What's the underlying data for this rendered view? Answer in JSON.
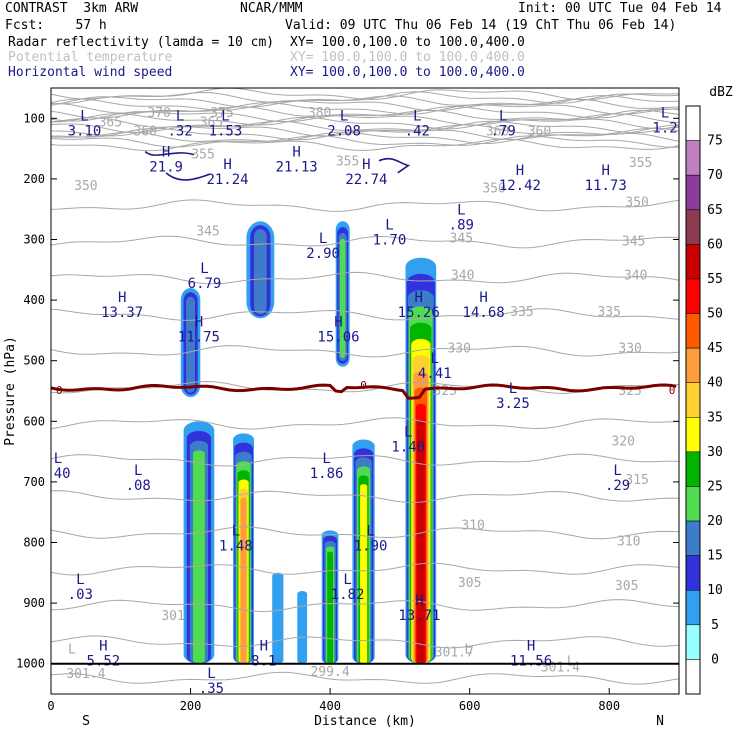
{
  "header": {
    "model": "CONTRAST  3km ARW",
    "center": "NCAR/MMM",
    "init": "Init: 00 UTC Tue 04 Feb 14",
    "fcst": "Fcst:    57 h",
    "valid": "Valid: 09 UTC Thu 06 Feb 14 (19 ChT Thu 06 Feb 14)",
    "fields": [
      {
        "name": "Radar reflectivity (lamda = 10 cm)",
        "xy": "XY= 100.0,100.0 to 100.0,400.0",
        "style": "black"
      },
      {
        "name": "Potential temperature",
        "xy": "XY= 100.0,100.0 to 100.0,400.0",
        "style": "gray"
      },
      {
        "name": "Horizontal wind speed",
        "xy": "XY= 100.0,100.0 to 100.0,400.0",
        "style": "blue"
      }
    ]
  },
  "colors": {
    "wind": "#1a1a8c",
    "theta": "#a8a8a8",
    "freezing": "#7a0000"
  },
  "chart_data": {
    "type": "heatmap",
    "xlabel": "Distance (km)",
    "ylabel": "Pressure (hPa)",
    "xlim": [
      0,
      900
    ],
    "ylim": [
      1050,
      50
    ],
    "x_ticks": [
      0,
      200,
      400,
      600,
      800
    ],
    "y_ticks": [
      100,
      200,
      300,
      400,
      500,
      600,
      700,
      800,
      900,
      1000
    ],
    "x_end_labels": {
      "left": "S",
      "right": "N"
    },
    "colorbar": {
      "unit": "dBZ",
      "levels": [
        75,
        70,
        65,
        60,
        55,
        50,
        45,
        40,
        35,
        30,
        25,
        20,
        15,
        10,
        5,
        0
      ],
      "colors": [
        "#ffffff",
        "#c080c0",
        "#8c3c9c",
        "#8c3c50",
        "#c80000",
        "#ff0000",
        "#ff5a00",
        "#ff9c3c",
        "#ffd232",
        "#ffff00",
        "#00b400",
        "#50dc50",
        "#3c7cc8",
        "#3232dc",
        "#32a0f0",
        "#96ffff",
        "#ffffff"
      ]
    },
    "reflectivity_cells": [
      {
        "x": 212,
        "p_top": 600,
        "p_bottom": 1000,
        "half_width_km": 22,
        "peak_dbz": 20
      },
      {
        "x": 200,
        "p_top": 380,
        "p_bottom": 560,
        "half_width_km": 14,
        "peak_dbz": 15
      },
      {
        "x": 300,
        "p_top": 270,
        "p_bottom": 430,
        "half_width_km": 20,
        "peak_dbz": 15
      },
      {
        "x": 276,
        "p_top": 620,
        "p_bottom": 1000,
        "half_width_km": 15,
        "peak_dbz": 40
      },
      {
        "x": 400,
        "p_top": 780,
        "p_bottom": 1000,
        "half_width_km": 12,
        "peak_dbz": 25
      },
      {
        "x": 418,
        "p_top": 270,
        "p_bottom": 510,
        "half_width_km": 10,
        "peak_dbz": 20
      },
      {
        "x": 448,
        "p_top": 630,
        "p_bottom": 1000,
        "half_width_km": 16,
        "peak_dbz": 30
      },
      {
        "x": 530,
        "p_top": 330,
        "p_bottom": 1000,
        "half_width_km": 22,
        "peak_dbz": 55
      },
      {
        "x": 325,
        "p_top": 850,
        "p_bottom": 1000,
        "half_width_km": 8,
        "peak_dbz": 5
      },
      {
        "x": 360,
        "p_top": 880,
        "p_bottom": 1000,
        "half_width_km": 7,
        "peak_dbz": 5
      }
    ],
    "theta_contour_labels": [
      {
        "text": "365",
        "x": 85,
        "p": 105
      },
      {
        "text": "365",
        "x": 230,
        "p": 105
      },
      {
        "text": "370",
        "x": 155,
        "p": 90
      },
      {
        "text": "375",
        "x": 245,
        "p": 90
      },
      {
        "text": "380",
        "x": 385,
        "p": 90
      },
      {
        "text": "360",
        "x": 135,
        "p": 120
      },
      {
        "text": "360",
        "x": 640,
        "p": 120
      },
      {
        "text": "360",
        "x": 700,
        "p": 120
      },
      {
        "text": "355",
        "x": 218,
        "p": 158
      },
      {
        "text": "355",
        "x": 425,
        "p": 170
      },
      {
        "text": "355",
        "x": 845,
        "p": 172
      },
      {
        "text": "350",
        "x": 50,
        "p": 210
      },
      {
        "text": "350",
        "x": 635,
        "p": 214
      },
      {
        "text": "350",
        "x": 840,
        "p": 237
      },
      {
        "text": "345",
        "x": 225,
        "p": 285
      },
      {
        "text": "345",
        "x": 588,
        "p": 297
      },
      {
        "text": "345",
        "x": 835,
        "p": 302
      },
      {
        "text": "340",
        "x": 590,
        "p": 358
      },
      {
        "text": "340",
        "x": 838,
        "p": 358
      },
      {
        "text": "335",
        "x": 675,
        "p": 418
      },
      {
        "text": "335",
        "x": 800,
        "p": 418
      },
      {
        "text": "330",
        "x": 585,
        "p": 478
      },
      {
        "text": "330",
        "x": 830,
        "p": 478
      },
      {
        "text": "325",
        "x": 565,
        "p": 548
      },
      {
        "text": "325",
        "x": 830,
        "p": 548
      },
      {
        "text": "320",
        "x": 820,
        "p": 632
      },
      {
        "text": "315",
        "x": 840,
        "p": 695
      },
      {
        "text": "310",
        "x": 605,
        "p": 770
      },
      {
        "text": "310",
        "x": 828,
        "p": 797
      },
      {
        "text": "305",
        "x": 600,
        "p": 865
      },
      {
        "text": "305",
        "x": 825,
        "p": 870
      },
      {
        "text": "301",
        "x": 175,
        "p": 920
      },
      {
        "text": "301.7",
        "x": 578,
        "p": 980
      },
      {
        "text": "301.4",
        "x": 50,
        "p": 1015
      },
      {
        "text": "301.4",
        "x": 730,
        "p": 1005
      },
      {
        "text": "299.4",
        "x": 400,
        "p": 1012
      }
    ],
    "theta_markers": [
      {
        "text": "L",
        "x": 598,
        "p": 975
      },
      {
        "text": "L",
        "x": 745,
        "p": 995
      },
      {
        "text": "L",
        "x": 30,
        "p": 975
      }
    ],
    "freezing_level_labels": [
      {
        "text": "0",
        "x": 12,
        "p": 548
      },
      {
        "text": "0",
        "x": 448,
        "p": 540
      },
      {
        "text": "0",
        "x": 890,
        "p": 548
      }
    ],
    "wind_labels": [
      {
        "type": "L",
        "value": "3.10",
        "x": 48,
        "p": 110
      },
      {
        "type": "L",
        "value": ".32",
        "x": 185,
        "p": 110
      },
      {
        "type": "L",
        "value": "1.53",
        "x": 250,
        "p": 110
      },
      {
        "type": "L",
        "value": "2.08",
        "x": 420,
        "p": 110
      },
      {
        "type": "L",
        "value": ".42",
        "x": 525,
        "p": 110
      },
      {
        "type": "L",
        "value": ".79",
        "x": 648,
        "p": 110
      },
      {
        "type": "L",
        "value": "1.2",
        "x": 880,
        "p": 105
      },
      {
        "type": "H",
        "value": "21.9",
        "x": 165,
        "p": 170
      },
      {
        "type": "H",
        "value": "21.24",
        "x": 253,
        "p": 190
      },
      {
        "type": "H",
        "value": "21.13",
        "x": 352,
        "p": 170
      },
      {
        "type": "H",
        "value": "22.74",
        "x": 452,
        "p": 190
      },
      {
        "type": "H",
        "value": "12.42",
        "x": 672,
        "p": 200
      },
      {
        "type": "H",
        "value": "11.73",
        "x": 795,
        "p": 200
      },
      {
        "type": "L",
        "value": ".89",
        "x": 588,
        "p": 265
      },
      {
        "type": "L",
        "value": "1.70",
        "x": 485,
        "p": 290
      },
      {
        "type": "L",
        "value": "2.90",
        "x": 390,
        "p": 312
      },
      {
        "type": "L",
        "value": "6.79",
        "x": 220,
        "p": 362
      },
      {
        "type": "H",
        "value": "13.37",
        "x": 102,
        "p": 410
      },
      {
        "type": "H",
        "value": "15.26",
        "x": 527,
        "p": 410
      },
      {
        "type": "H",
        "value": "14.68",
        "x": 620,
        "p": 410
      },
      {
        "type": "H",
        "value": "11.75",
        "x": 212,
        "p": 450
      },
      {
        "type": "H",
        "value": "15.06",
        "x": 412,
        "p": 450
      },
      {
        "type": "L",
        "value": "4.41",
        "x": 550,
        "p": 510
      },
      {
        "type": "L",
        "value": "3.25",
        "x": 662,
        "p": 560
      },
      {
        "type": "L",
        "value": "1.40",
        "x": 512,
        "p": 632
      },
      {
        "type": "L",
        "value": ".40",
        "x": 10,
        "p": 675
      },
      {
        "type": "L",
        "value": "1.86",
        "x": 395,
        "p": 675
      },
      {
        "type": "L",
        "value": ".08",
        "x": 125,
        "p": 695
      },
      {
        "type": "L",
        "value": ".29",
        "x": 812,
        "p": 695
      },
      {
        "type": "L",
        "value": "1.48",
        "x": 265,
        "p": 795
      },
      {
        "type": "L",
        "value": "1.90",
        "x": 458,
        "p": 795
      },
      {
        "type": "L",
        "value": ".03",
        "x": 42,
        "p": 875
      },
      {
        "type": "L",
        "value": "1.82",
        "x": 425,
        "p": 875
      },
      {
        "type": "H",
        "value": "13.71",
        "x": 528,
        "p": 910
      },
      {
        "type": "H",
        "value": "5.52",
        "x": 75,
        "p": 985
      },
      {
        "type": "H",
        "value": "8.1",
        "x": 305,
        "p": 985
      },
      {
        "type": "H",
        "value": "11.56",
        "x": 688,
        "p": 985
      },
      {
        "type": "L",
        "value": ".35",
        "x": 230,
        "p": 1030
      }
    ]
  }
}
